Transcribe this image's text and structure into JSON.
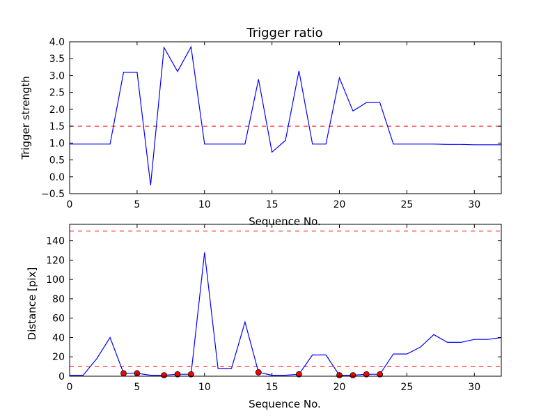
{
  "chart_data": [
    {
      "type": "line",
      "title": "Trigger ratio",
      "xlabel": "Sequence No.",
      "ylabel": "Trigger strength",
      "xlim": [
        0,
        32
      ],
      "ylim": [
        -0.5,
        4.0
      ],
      "xticks": [
        "0",
        "5",
        "10",
        "15",
        "20",
        "25",
        "30"
      ],
      "yticks": [
        "−0.5",
        "0.0",
        "0.5",
        "1.0",
        "1.5",
        "2.0",
        "2.5",
        "3.0",
        "3.5",
        "4.0"
      ],
      "grid": false,
      "series": [
        {
          "color": "#0000ff",
          "style": "solid",
          "x": [
            0,
            1,
            2,
            3,
            4,
            5,
            6,
            7,
            8,
            9,
            10,
            11,
            12,
            13,
            14,
            15,
            16,
            17,
            18,
            19,
            20,
            21,
            22,
            23,
            24,
            25,
            26,
            27,
            28,
            29,
            30,
            31,
            32
          ],
          "y": [
            0.97,
            0.97,
            0.97,
            0.97,
            3.1,
            3.1,
            -0.25,
            3.83,
            3.12,
            3.85,
            0.97,
            0.97,
            0.97,
            0.97,
            2.89,
            0.73,
            1.08,
            3.14,
            0.97,
            0.97,
            2.93,
            1.95,
            2.2,
            2.2,
            0.97,
            0.97,
            0.97,
            0.97,
            0.96,
            0.96,
            0.95,
            0.95,
            0.95
          ]
        }
      ],
      "reference_lines": [
        {
          "y": 1.5,
          "color": "#ff0000",
          "style": "dashed"
        }
      ]
    },
    {
      "type": "line",
      "title": "",
      "xlabel": "Sequence No.",
      "ylabel": "Distance [pix]",
      "xlim": [
        0,
        32
      ],
      "ylim": [
        0,
        157
      ],
      "xticks": [
        "0",
        "5",
        "10",
        "15",
        "20",
        "25",
        "30"
      ],
      "yticks": [
        "0",
        "20",
        "40",
        "60",
        "80",
        "100",
        "120",
        "140"
      ],
      "grid": false,
      "series": [
        {
          "color": "#0000ff",
          "style": "solid",
          "x": [
            0,
            1,
            2,
            3,
            4,
            5,
            6,
            7,
            8,
            9,
            10,
            11,
            12,
            13,
            14,
            15,
            16,
            17,
            18,
            19,
            20,
            21,
            22,
            23,
            24,
            25,
            26,
            27,
            28,
            29,
            30,
            31,
            32
          ],
          "y": [
            1,
            1,
            18,
            40,
            3,
            3,
            1,
            1,
            2,
            2,
            128,
            8,
            8,
            56,
            4,
            1,
            1,
            2,
            22,
            22,
            1,
            1,
            2,
            2,
            23,
            23,
            30,
            43,
            35,
            35,
            38,
            38,
            40
          ]
        }
      ],
      "markers": {
        "color": "#ff0000",
        "x": [
          4,
          5,
          7,
          8,
          9,
          14,
          17,
          20,
          21,
          22,
          23
        ],
        "y": [
          3,
          3,
          1,
          2,
          2,
          4,
          2,
          1,
          1,
          2,
          2
        ]
      },
      "reference_lines": [
        {
          "y": 150,
          "color": "#ff0000",
          "style": "dashed"
        },
        {
          "y": 10,
          "color": "#ff0000",
          "style": "dashed"
        }
      ]
    }
  ]
}
